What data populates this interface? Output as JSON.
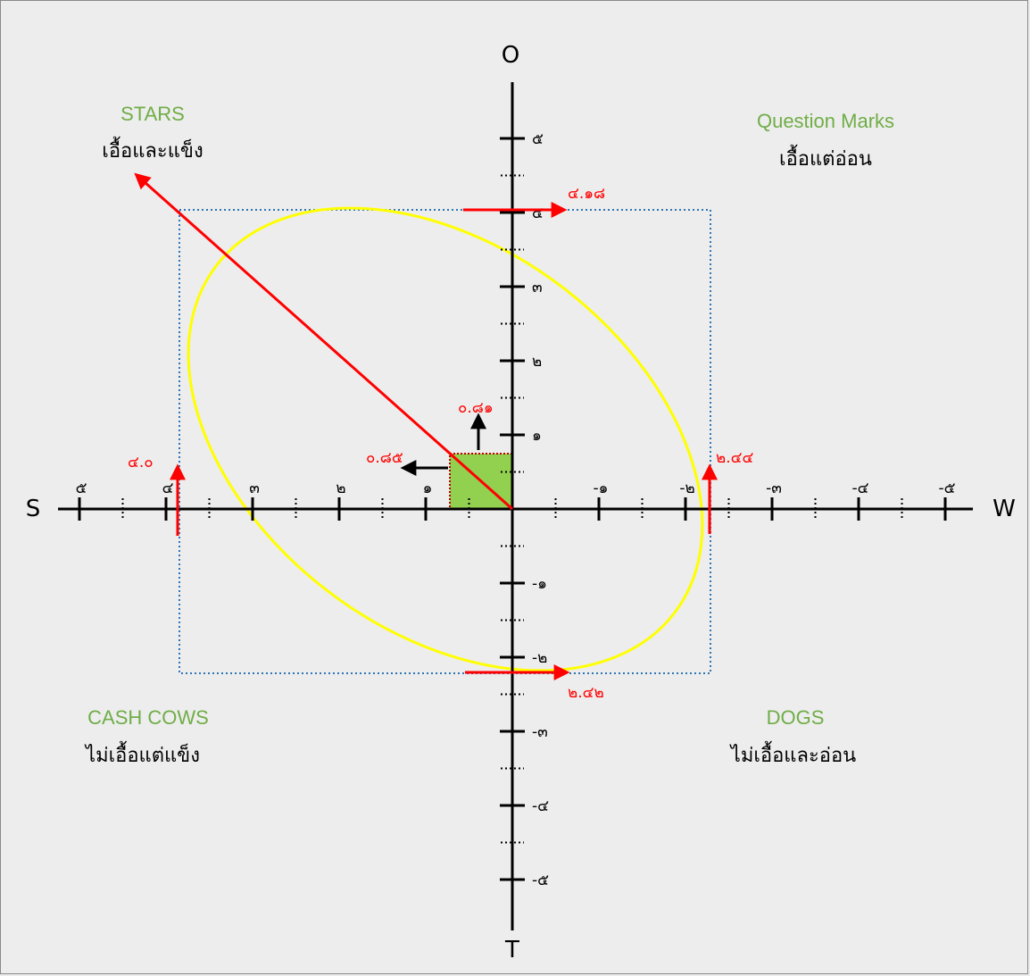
{
  "axes": {
    "top": "O",
    "bottom": "T",
    "left": "S",
    "right": "W",
    "x_ticks": [
      "๕",
      "๔",
      "๓",
      "๒",
      "๑",
      "-๑",
      "-๒",
      "-๓",
      "-๔",
      "-๕"
    ],
    "y_ticks": [
      "๕",
      "๔",
      "๓",
      "๒",
      "๑",
      "-๑",
      "-๒",
      "-๓",
      "-๔",
      "-๕"
    ]
  },
  "quadrants": {
    "stars": {
      "title": "STARS",
      "subtitle": "เอื้อและแข็ง"
    },
    "question_marks": {
      "title": "Question Marks",
      "subtitle": "เอื้อแต่อ่อน"
    },
    "cash_cows": {
      "title": "CASH COWS",
      "subtitle": "ไม่เอื้อแต่แข็ง"
    },
    "dogs": {
      "title": "DOGS",
      "subtitle": "ไม่เอื้อและอ่อน"
    }
  },
  "markers": {
    "top_value": "๔.๑๘",
    "bottom_value": "๒.๔๒",
    "left_value": "๔.๐",
    "right_value": "๒.๔๔",
    "small_x_value": "๐.๘๕",
    "small_y_value": "๐.๘๑"
  },
  "colors": {
    "background": "#ededed",
    "ellipse": "#ffff00",
    "vector": "#ff0000",
    "box": "#2e75b6",
    "result_square": "#92d050",
    "quadrant_title": "#70ad47"
  },
  "chart_data": {
    "type": "scatter",
    "x_axis_range": [
      5,
      -5
    ],
    "y_axis_range": [
      -5,
      5
    ],
    "points": [
      {
        "x": 0.85,
        "y": 0.81,
        "label_x": "๐.๘๕",
        "label_y": "๐.๘๑"
      }
    ],
    "box": {
      "x_left": 4.0,
      "x_right": -2.44,
      "y_top": 4.18,
      "y_bottom": -2.42
    }
  }
}
